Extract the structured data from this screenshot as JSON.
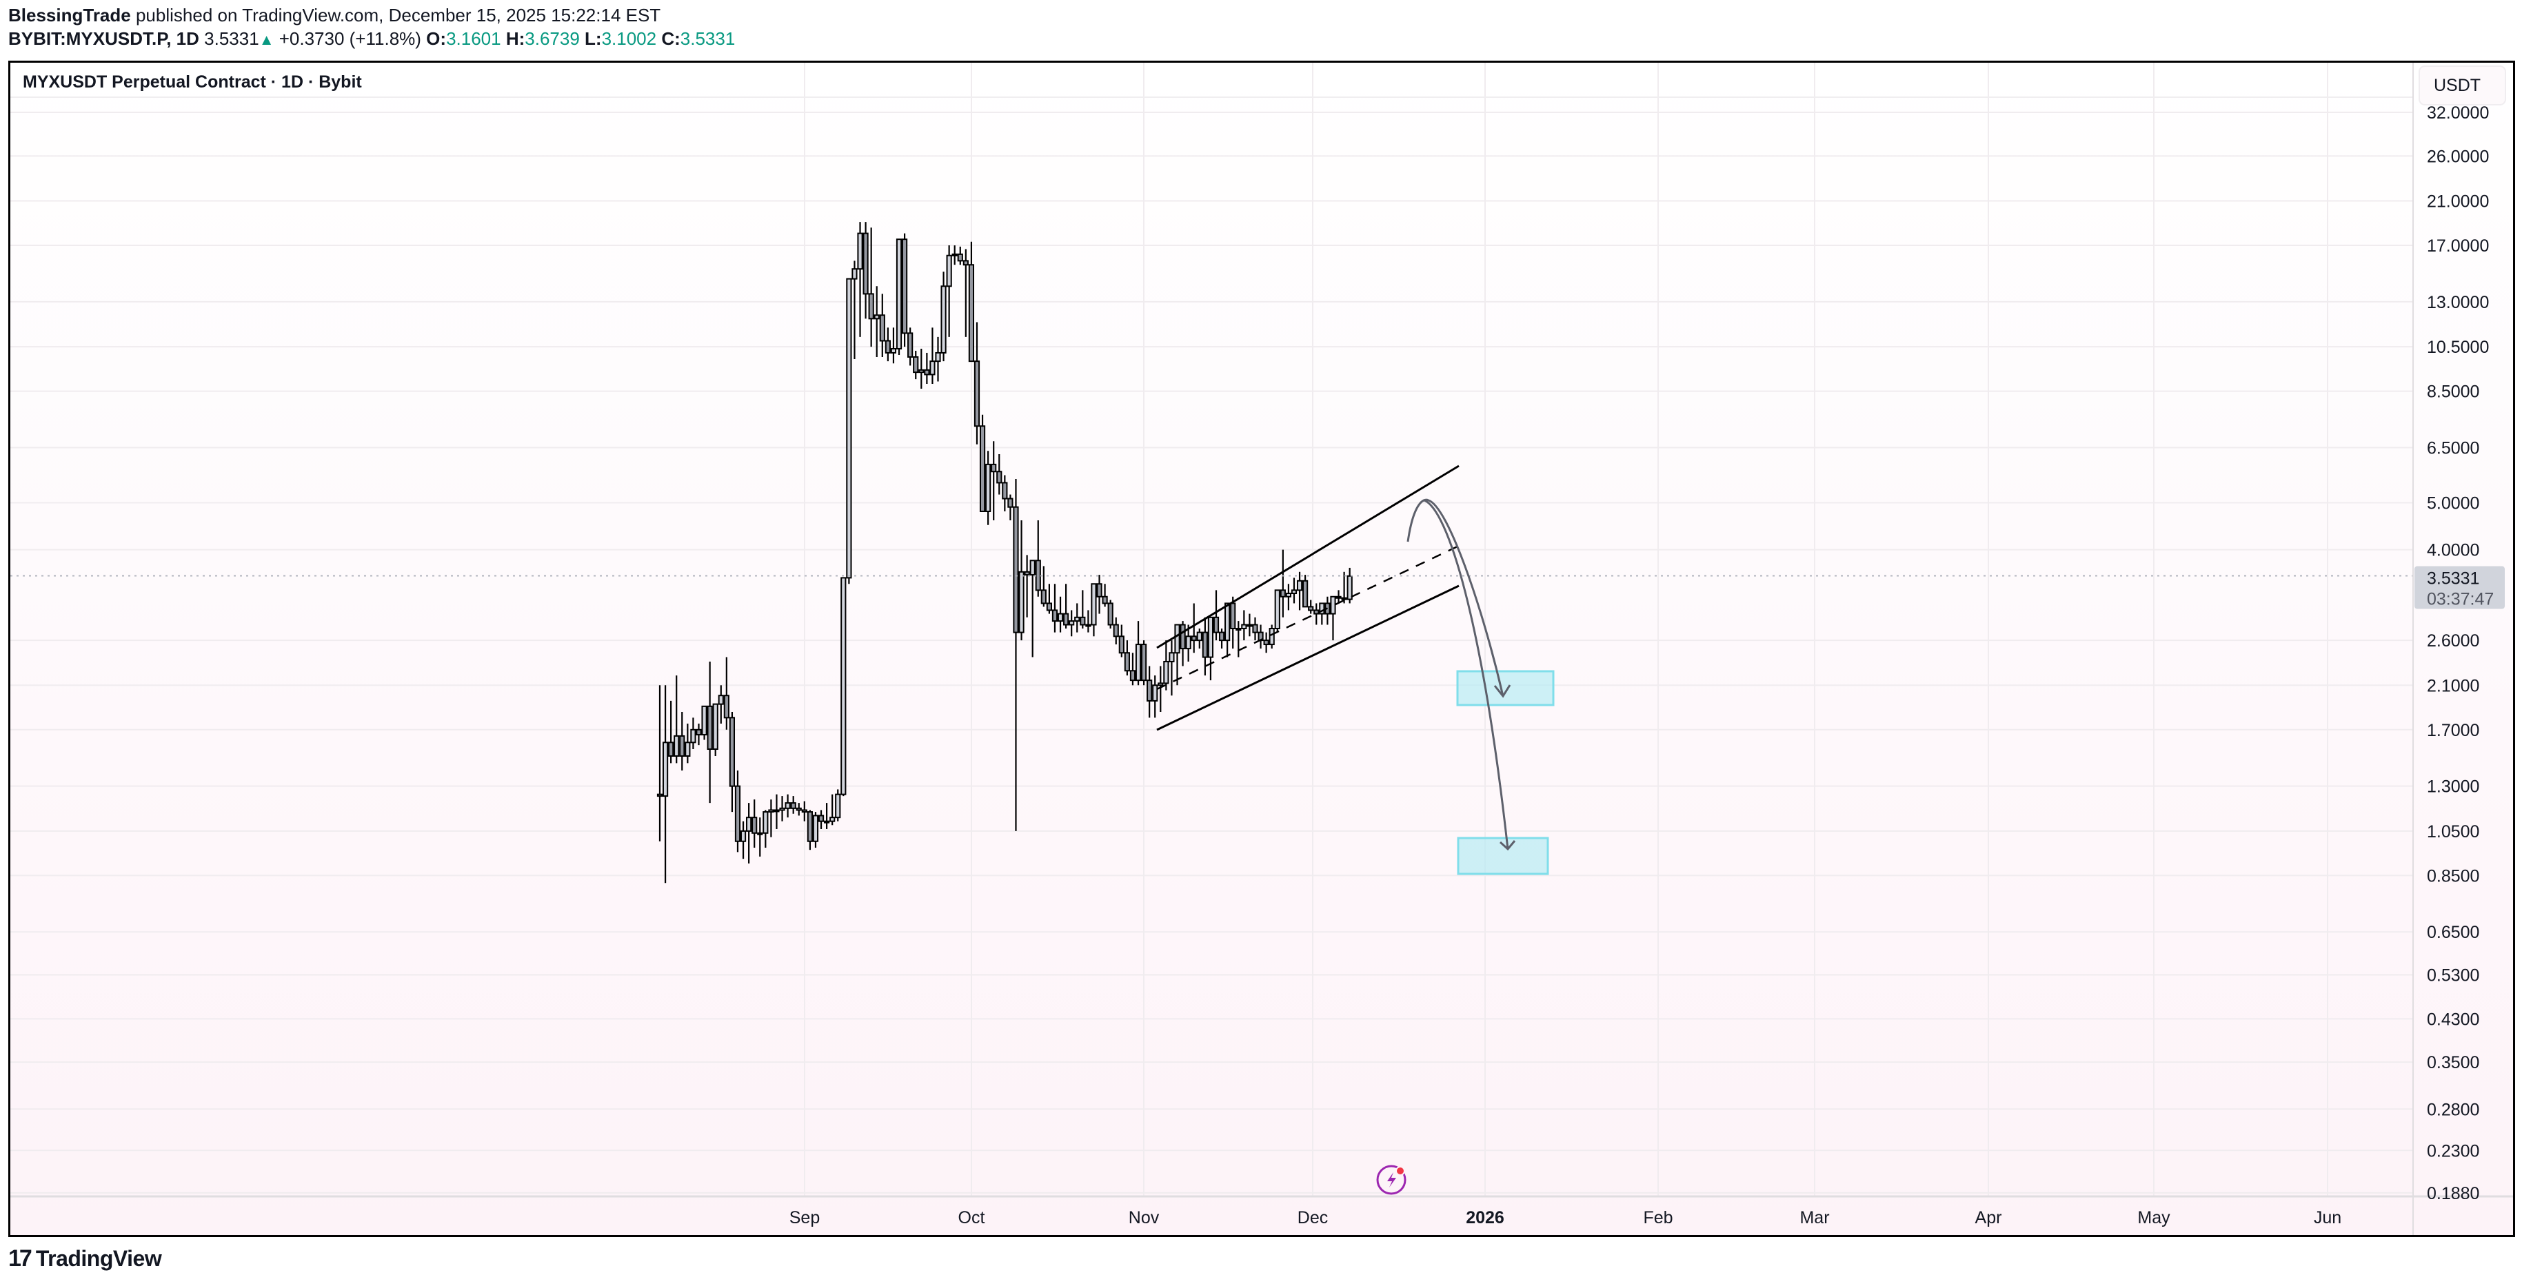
{
  "header": {
    "author": "BlessingTrade",
    "published_text": "published on TradingView.com, December 15, 2025 15:22:14 EST",
    "symbol_line": {
      "symbol": "BYBIT:MYXUSDT.P, 1D",
      "last": "3.5331",
      "change_arrow": "▲",
      "change": "+0.3730 (+11.8%)",
      "open_label": "O:",
      "open": "3.1601",
      "high_label": "H:",
      "high": "3.6739",
      "low_label": "L:",
      "low": "3.1002",
      "close_label": "C:",
      "close": "3.5331"
    }
  },
  "chart": {
    "title": "MYXUSDT Perpetual Contract · 1D · Bybit",
    "currency_label": "USDT",
    "last_price_label": "3.5331",
    "countdown": "03:37:47",
    "branding": "TradingView",
    "branding_mark": "17",
    "colors": {
      "up_body": "#d1d4dc",
      "down_body": "#9598a1",
      "outline": "#000000",
      "zone_fill": "#b2ebf2",
      "zone_border": "#80deea",
      "arrow": "#5d606b",
      "grid": "#f0ecef",
      "last_price_bg": "#d1d4dc",
      "positive": "#089981",
      "flash_icon": "#9c27b0",
      "flash_dot": "#f23645"
    }
  },
  "chart_data": {
    "type": "candlestick",
    "title": "MYXUSDT Perpetual Contract · 1D · Bybit",
    "xlabel": "",
    "ylabel": "USDT",
    "y_scale": "log",
    "ylim": [
      0.188,
      32.0
    ],
    "y_ticks": [
      "32.0000",
      "26.0000",
      "21.0000",
      "17.0000",
      "13.0000",
      "10.5000",
      "8.5000",
      "6.5000",
      "5.0000",
      "4.0000",
      "2.6000",
      "2.1000",
      "1.7000",
      "1.3000",
      "1.0500",
      "0.8500",
      "0.6500",
      "0.5300",
      "0.4300",
      "0.3500",
      "0.2800",
      "0.2300",
      "0.1880"
    ],
    "x_ticks": [
      {
        "label": "Sep",
        "bold": false
      },
      {
        "label": "Oct",
        "bold": false
      },
      {
        "label": "Nov",
        "bold": false
      },
      {
        "label": "Dec",
        "bold": false
      },
      {
        "label": "2026",
        "bold": true
      },
      {
        "label": "Feb",
        "bold": false
      },
      {
        "label": "Mar",
        "bold": false
      },
      {
        "label": "Apr",
        "bold": false
      },
      {
        "label": "May",
        "bold": false
      },
      {
        "label": "Jun",
        "bold": false
      }
    ],
    "grid": true,
    "first_candle_date": "2025-08-06",
    "last_candle_date": "2025-12-15",
    "ohlc": [
      [
        1.25,
        2.1,
        1.0,
        1.24
      ],
      [
        1.24,
        2.1,
        0.82,
        1.6
      ],
      [
        1.6,
        1.95,
        1.45,
        1.5
      ],
      [
        1.5,
        2.2,
        1.45,
        1.65
      ],
      [
        1.65,
        1.85,
        1.4,
        1.5
      ],
      [
        1.5,
        1.75,
        1.45,
        1.6
      ],
      [
        1.6,
        1.8,
        1.55,
        1.7
      ],
      [
        1.7,
        1.75,
        1.58,
        1.66
      ],
      [
        1.66,
        1.9,
        1.62,
        1.9
      ],
      [
        1.9,
        2.35,
        1.2,
        1.55
      ],
      [
        1.55,
        1.92,
        1.5,
        1.92
      ],
      [
        1.92,
        2.1,
        1.75,
        2.0
      ],
      [
        2.0,
        2.4,
        1.7,
        1.8
      ],
      [
        1.8,
        1.85,
        1.15,
        1.3
      ],
      [
        1.3,
        1.4,
        0.95,
        1.0
      ],
      [
        1.0,
        1.1,
        0.92,
        1.05
      ],
      [
        1.05,
        1.2,
        0.9,
        1.12
      ],
      [
        1.12,
        1.22,
        0.97,
        1.04
      ],
      [
        1.04,
        1.12,
        0.93,
        1.04
      ],
      [
        1.04,
        1.16,
        0.97,
        1.15
      ],
      [
        1.15,
        1.22,
        1.02,
        1.16
      ],
      [
        1.16,
        1.25,
        1.06,
        1.16
      ],
      [
        1.16,
        1.24,
        1.1,
        1.17
      ],
      [
        1.17,
        1.25,
        1.12,
        1.2
      ],
      [
        1.2,
        1.24,
        1.14,
        1.17
      ],
      [
        1.17,
        1.2,
        1.13,
        1.16
      ],
      [
        1.16,
        1.21,
        1.1,
        1.15
      ],
      [
        1.15,
        1.16,
        0.96,
        1.0
      ],
      [
        1.0,
        1.15,
        0.97,
        1.13
      ],
      [
        1.13,
        1.16,
        1.06,
        1.1
      ],
      [
        1.1,
        1.2,
        1.06,
        1.1
      ],
      [
        1.1,
        1.25,
        1.08,
        1.12
      ],
      [
        1.12,
        1.28,
        1.1,
        1.25
      ],
      [
        1.25,
        3.5,
        1.24,
        3.5
      ],
      [
        3.5,
        14.0,
        3.4,
        14.5
      ],
      [
        14.5,
        15.8,
        9.9,
        15.2
      ],
      [
        15.2,
        19.0,
        11.0,
        18.0
      ],
      [
        18.0,
        19.0,
        12.0,
        13.5
      ],
      [
        13.5,
        18.5,
        10.5,
        12.0
      ],
      [
        12.0,
        14.0,
        10.0,
        12.2
      ],
      [
        12.2,
        13.5,
        10.0,
        10.8
      ],
      [
        10.8,
        11.5,
        9.8,
        10.2
      ],
      [
        10.2,
        11.5,
        9.7,
        10.4
      ],
      [
        10.4,
        13.5,
        10.1,
        17.5
      ],
      [
        17.5,
        18.0,
        10.5,
        11.2
      ],
      [
        11.2,
        11.5,
        9.6,
        10.0
      ],
      [
        10.0,
        10.3,
        9.0,
        9.3
      ],
      [
        9.3,
        10.4,
        8.6,
        9.4
      ],
      [
        9.4,
        10.2,
        8.8,
        9.2
      ],
      [
        9.2,
        11.5,
        8.8,
        9.8
      ],
      [
        9.8,
        11.0,
        8.9,
        10.2
      ],
      [
        10.2,
        15.0,
        9.8,
        14.0
      ],
      [
        14.0,
        17.0,
        11.0,
        16.2
      ],
      [
        16.2,
        17.0,
        15.5,
        16.3
      ],
      [
        16.3,
        16.9,
        15.5,
        15.8
      ],
      [
        15.8,
        16.7,
        11.0,
        15.5
      ],
      [
        15.5,
        17.3,
        12.0,
        9.8
      ],
      [
        9.8,
        11.8,
        6.6,
        7.2
      ],
      [
        7.2,
        7.6,
        4.8,
        4.8
      ],
      [
        4.8,
        6.4,
        4.5,
        6.0
      ],
      [
        6.0,
        6.7,
        4.6,
        5.8
      ],
      [
        5.8,
        6.3,
        5.2,
        5.5
      ],
      [
        5.5,
        5.7,
        4.8,
        5.1
      ],
      [
        5.1,
        5.2,
        4.6,
        4.9
      ],
      [
        4.9,
        5.6,
        1.05,
        2.7
      ],
      [
        2.7,
        4.6,
        2.6,
        3.6
      ],
      [
        3.6,
        3.9,
        2.9,
        3.55
      ],
      [
        3.55,
        3.7,
        2.4,
        3.8
      ],
      [
        3.8,
        4.6,
        3.2,
        3.3
      ],
      [
        3.3,
        3.7,
        3.05,
        3.1
      ],
      [
        3.1,
        3.4,
        2.95,
        3.0
      ],
      [
        3.0,
        3.4,
        2.7,
        2.85
      ],
      [
        2.85,
        3.2,
        2.7,
        2.95
      ],
      [
        2.95,
        3.4,
        2.75,
        2.8
      ],
      [
        2.8,
        3.0,
        2.65,
        2.85
      ],
      [
        2.85,
        3.1,
        2.7,
        2.9
      ],
      [
        2.9,
        3.3,
        2.75,
        2.8
      ],
      [
        2.8,
        3.0,
        2.7,
        2.8
      ],
      [
        2.8,
        3.15,
        2.65,
        3.4
      ],
      [
        3.4,
        3.55,
        2.95,
        3.2
      ],
      [
        3.2,
        3.4,
        3.05,
        3.1
      ],
      [
        3.1,
        3.15,
        2.75,
        2.8
      ],
      [
        2.8,
        2.9,
        2.55,
        2.65
      ],
      [
        2.65,
        2.8,
        2.4,
        2.45
      ],
      [
        2.45,
        2.6,
        2.2,
        2.25
      ],
      [
        2.25,
        2.45,
        2.1,
        2.15
      ],
      [
        2.15,
        2.85,
        2.1,
        2.55
      ],
      [
        2.55,
        2.6,
        2.1,
        2.15
      ],
      [
        2.15,
        2.3,
        1.8,
        1.95
      ],
      [
        1.95,
        2.2,
        1.8,
        2.1
      ],
      [
        2.1,
        2.3,
        1.85,
        2.12
      ],
      [
        2.12,
        2.6,
        2.05,
        2.35
      ],
      [
        2.35,
        2.6,
        2.0,
        2.45
      ],
      [
        2.45,
        2.8,
        2.1,
        2.8
      ],
      [
        2.8,
        2.85,
        2.3,
        2.5
      ],
      [
        2.5,
        2.8,
        2.35,
        2.65
      ],
      [
        2.65,
        3.1,
        2.45,
        2.6
      ],
      [
        2.6,
        2.75,
        2.5,
        2.7
      ],
      [
        2.7,
        2.9,
        2.2,
        2.4
      ],
      [
        2.4,
        2.9,
        2.15,
        2.9
      ],
      [
        2.9,
        3.3,
        2.6,
        2.7
      ],
      [
        2.7,
        2.75,
        2.5,
        2.6
      ],
      [
        2.6,
        3.0,
        2.4,
        3.1
      ],
      [
        3.1,
        3.2,
        2.5,
        2.75
      ],
      [
        2.75,
        2.85,
        2.4,
        2.75
      ],
      [
        2.75,
        3.0,
        2.6,
        2.8
      ],
      [
        2.8,
        2.95,
        2.65,
        2.8
      ],
      [
        2.8,
        2.9,
        2.6,
        2.7
      ],
      [
        2.7,
        2.8,
        2.5,
        2.6
      ],
      [
        2.6,
        2.7,
        2.45,
        2.55
      ],
      [
        2.55,
        2.8,
        2.5,
        2.75
      ],
      [
        2.75,
        3.3,
        2.7,
        3.3
      ],
      [
        3.3,
        4.0,
        2.9,
        3.2
      ],
      [
        3.2,
        3.4,
        3.0,
        3.25
      ],
      [
        3.25,
        3.5,
        3.1,
        3.3
      ],
      [
        3.3,
        3.6,
        3.0,
        3.45
      ],
      [
        3.45,
        3.55,
        3.05,
        3.05
      ],
      [
        3.05,
        3.15,
        2.95,
        3.0
      ],
      [
        3.0,
        3.1,
        2.8,
        2.95
      ],
      [
        2.95,
        3.1,
        2.8,
        3.1
      ],
      [
        3.1,
        3.2,
        2.8,
        2.95
      ],
      [
        2.95,
        3.2,
        2.6,
        3.2
      ],
      [
        3.2,
        3.3,
        3.1,
        3.18
      ],
      [
        3.18,
        3.6,
        3.1,
        3.16
      ],
      [
        3.16,
        3.67,
        3.1,
        3.53
      ]
    ],
    "annotations": {
      "ascending_channel": {
        "upper": [
          [
            1678,
            940
          ],
          [
            2116,
            676
          ]
        ],
        "lower": [
          [
            1678,
            1059
          ],
          [
            2116,
            850
          ]
        ],
        "mid_dashed": [
          [
            1678,
            1000
          ],
          [
            2116,
            792
          ]
        ]
      },
      "projection_arrows": 2,
      "target_zones": [
        {
          "price_top": 2.3,
          "price_bottom": 1.95
        },
        {
          "price_top": 1.0,
          "price_bottom": 0.85
        }
      ]
    }
  }
}
